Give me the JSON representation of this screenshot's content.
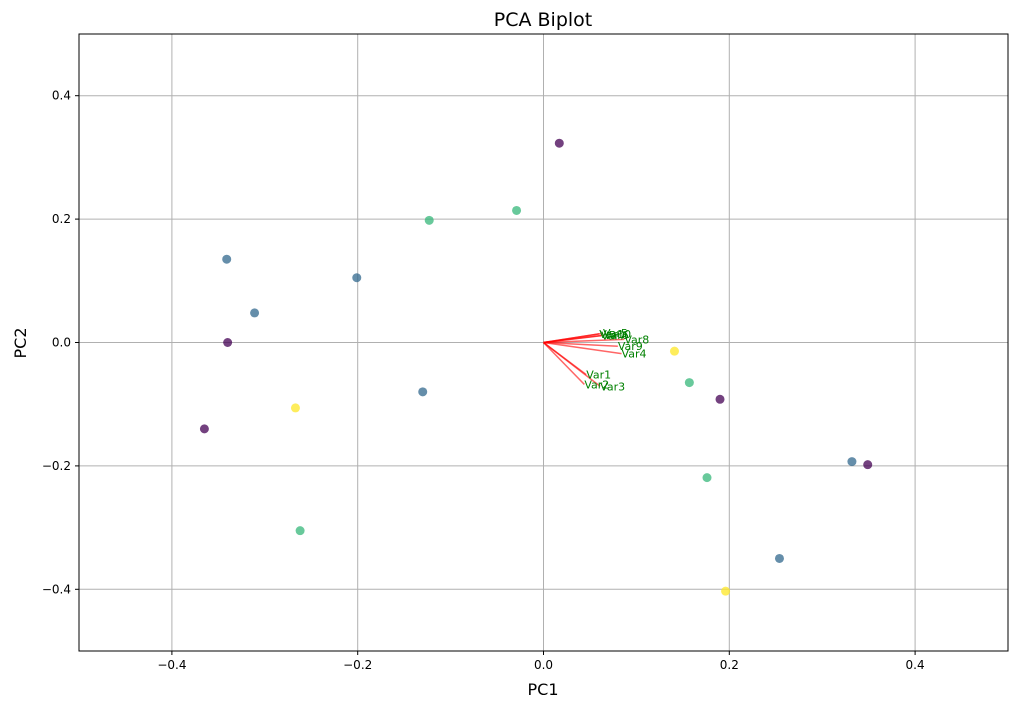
{
  "chart_data": {
    "type": "scatter",
    "title": "PCA Biplot",
    "xlabel": "PC1",
    "ylabel": "PC2",
    "xlim": [
      -0.5,
      0.5
    ],
    "ylim": [
      -0.5,
      0.5
    ],
    "xticks": [
      -0.4,
      -0.2,
      0.0,
      0.2,
      0.4
    ],
    "yticks": [
      -0.4,
      -0.2,
      0.0,
      0.2,
      0.4
    ],
    "xtick_labels": [
      "−0.4",
      "−0.2",
      "0.0",
      "0.2",
      "0.4"
    ],
    "ytick_labels": [
      "−0.4",
      "−0.2",
      "0.0",
      "0.2",
      "0.4"
    ],
    "grid": true,
    "colors": {
      "class_0": "#440154",
      "class_1": "#31688e",
      "class_2": "#35b779",
      "class_3": "#fde725",
      "arrow": "#ff0000",
      "loading_label": "#008000",
      "grid": "#b0b0b0"
    },
    "points": [
      {
        "x": 0.017,
        "y": 0.323,
        "group": 0
      },
      {
        "x": -0.34,
        "y": 0.0,
        "group": 0
      },
      {
        "x": -0.365,
        "y": -0.14,
        "group": 0
      },
      {
        "x": 0.19,
        "y": -0.092,
        "group": 0
      },
      {
        "x": 0.349,
        "y": -0.198,
        "group": 0
      },
      {
        "x": -0.341,
        "y": 0.135,
        "group": 1
      },
      {
        "x": -0.311,
        "y": 0.048,
        "group": 1
      },
      {
        "x": -0.201,
        "y": 0.105,
        "group": 1
      },
      {
        "x": -0.13,
        "y": -0.08,
        "group": 1
      },
      {
        "x": 0.332,
        "y": -0.193,
        "group": 1
      },
      {
        "x": 0.254,
        "y": -0.35,
        "group": 1
      },
      {
        "x": -0.123,
        "y": 0.198,
        "group": 2
      },
      {
        "x": -0.029,
        "y": 0.214,
        "group": 2
      },
      {
        "x": 0.157,
        "y": -0.065,
        "group": 2
      },
      {
        "x": 0.176,
        "y": -0.219,
        "group": 2
      },
      {
        "x": -0.262,
        "y": -0.305,
        "group": 2
      },
      {
        "x": -0.267,
        "y": -0.106,
        "group": 3
      },
      {
        "x": 0.141,
        "y": -0.014,
        "group": 3
      },
      {
        "x": 0.196,
        "y": -0.403,
        "group": 3
      }
    ],
    "loadings": [
      {
        "name": "Var1",
        "x": 0.046,
        "y": -0.052
      },
      {
        "name": "Var2",
        "x": 0.044,
        "y": -0.068
      },
      {
        "name": "Var3",
        "x": 0.061,
        "y": -0.071
      },
      {
        "name": "Var4",
        "x": 0.084,
        "y": -0.018
      },
      {
        "name": "Var5",
        "x": 0.064,
        "y": 0.015
      },
      {
        "name": "Var6",
        "x": 0.065,
        "y": 0.012
      },
      {
        "name": "Var7",
        "x": 0.062,
        "y": 0.011
      },
      {
        "name": "Var8",
        "x": 0.087,
        "y": 0.005
      },
      {
        "name": "Var9",
        "x": 0.08,
        "y": -0.006
      },
      {
        "name": "Var10",
        "x": 0.06,
        "y": 0.014
      }
    ]
  }
}
